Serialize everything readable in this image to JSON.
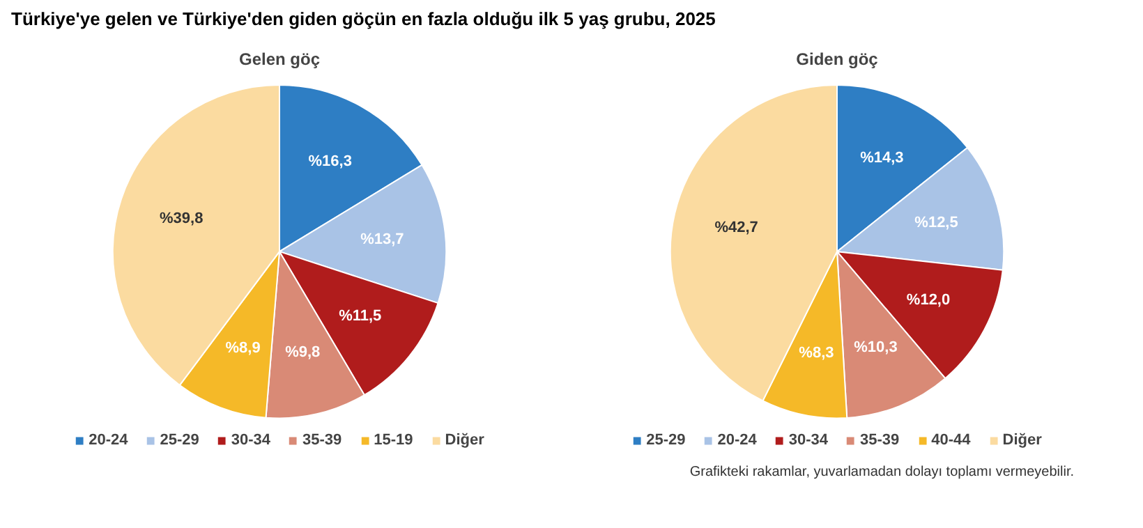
{
  "chart_data": [
    {
      "type": "pie",
      "title": "Türkiye'ye gelen ve Türkiye'den giden göçün en fazla olduğu ilk 5 yaş grubu, 2025",
      "subtitle": "Gelen göç",
      "categories": [
        "20-24",
        "25-29",
        "30-34",
        "35-39",
        "15-19",
        "Diğer"
      ],
      "values": [
        16.3,
        13.7,
        11.5,
        9.8,
        8.9,
        39.8
      ],
      "colors": [
        "#2e7ec4",
        "#a9c3e6",
        "#b01c1c",
        "#d98a76",
        "#f5b928",
        "#fbdba0"
      ],
      "value_labels": [
        "%16,3",
        "%13,7",
        "%11,5",
        "%9,8",
        "%8,9",
        "%39,8"
      ],
      "legend": "bottom"
    },
    {
      "type": "pie",
      "subtitle": "Giden göç",
      "categories": [
        "25-29",
        "20-24",
        "30-34",
        "35-39",
        "40-44",
        "Diğer"
      ],
      "values": [
        14.3,
        12.5,
        12.0,
        10.3,
        8.3,
        42.7
      ],
      "colors": [
        "#2e7ec4",
        "#a9c3e6",
        "#b01c1c",
        "#d98a76",
        "#f5b928",
        "#fbdba0"
      ],
      "value_labels": [
        "%14,3",
        "%12,5",
        "%12,0",
        "%10,3",
        "%8,3",
        "%42,7"
      ],
      "legend": "bottom",
      "annotations": [
        "Grafikteki rakamlar, yuvarlamadan dolayı toplamı vermeyebilir."
      ]
    }
  ]
}
